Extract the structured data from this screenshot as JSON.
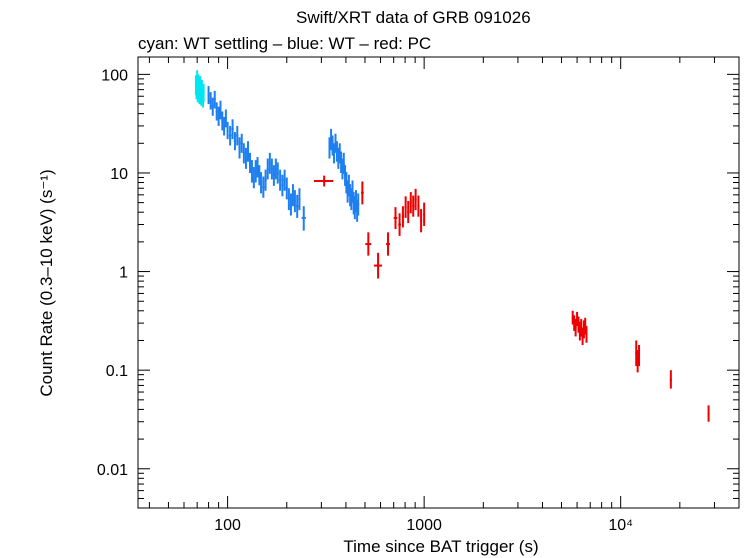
{
  "chart_data": {
    "type": "scatter",
    "title": "Swift/XRT data of GRB 091026",
    "subtitle": "cyan: WT settling – blue: WT – red: PC",
    "xlabel": "Time since BAT trigger (s)",
    "ylabel": "Count Rate (0.3–10 keV) (s⁻¹)",
    "xscale": "log",
    "yscale": "log",
    "xlim": [
      35,
      40000
    ],
    "ylim": [
      0.004,
      150
    ],
    "x_ticks": [
      {
        "value": 100,
        "label": "100"
      },
      {
        "value": 1000,
        "label": "1000"
      },
      {
        "value": 10000,
        "label": "10⁴"
      }
    ],
    "y_ticks": [
      {
        "value": 100,
        "label": "100"
      },
      {
        "value": 10,
        "label": "10"
      },
      {
        "value": 1,
        "label": "1"
      },
      {
        "value": 0.1,
        "label": "0.1"
      },
      {
        "value": 0.01,
        "label": "0.01"
      }
    ],
    "colors": {
      "wt_settling": "#00e5ee",
      "wt": "#1e7ff0",
      "pc": "#ee0000",
      "axes": "#000000"
    },
    "series": [
      {
        "name": "WT settling",
        "key": "wt_settling",
        "points": [
          {
            "x": 69,
            "y": 80,
            "xe": 0.5,
            "ylo": 62,
            "yhi": 98
          },
          {
            "x": 69.5,
            "y": 70,
            "xe": 0.5,
            "ylo": 56,
            "yhi": 86
          },
          {
            "x": 70,
            "y": 90,
            "xe": 0.5,
            "ylo": 72,
            "yhi": 110
          },
          {
            "x": 70.5,
            "y": 66,
            "xe": 0.5,
            "ylo": 52,
            "yhi": 80
          },
          {
            "x": 71,
            "y": 82,
            "xe": 0.5,
            "ylo": 66,
            "yhi": 100
          },
          {
            "x": 71.5,
            "y": 74,
            "xe": 0.5,
            "ylo": 58,
            "yhi": 92
          },
          {
            "x": 72,
            "y": 62,
            "xe": 0.5,
            "ylo": 50,
            "yhi": 76
          },
          {
            "x": 72.5,
            "y": 78,
            "xe": 0.5,
            "ylo": 62,
            "yhi": 96
          },
          {
            "x": 73,
            "y": 68,
            "xe": 0.5,
            "ylo": 54,
            "yhi": 84
          },
          {
            "x": 73.5,
            "y": 60,
            "xe": 0.5,
            "ylo": 48,
            "yhi": 74
          },
          {
            "x": 74,
            "y": 72,
            "xe": 0.5,
            "ylo": 58,
            "yhi": 88
          },
          {
            "x": 74.5,
            "y": 64,
            "xe": 0.5,
            "ylo": 50,
            "yhi": 78
          },
          {
            "x": 75,
            "y": 58,
            "xe": 0.5,
            "ylo": 46,
            "yhi": 72
          },
          {
            "x": 75.5,
            "y": 66,
            "xe": 0.5,
            "ylo": 52,
            "yhi": 80
          }
        ]
      },
      {
        "name": "WT",
        "key": "wt",
        "points": [
          {
            "x": 80,
            "y": 62,
            "xe": 1,
            "ylo": 50,
            "yhi": 76
          },
          {
            "x": 82,
            "y": 54,
            "xe": 1,
            "ylo": 44,
            "yhi": 66
          },
          {
            "x": 84,
            "y": 48,
            "xe": 1,
            "ylo": 38,
            "yhi": 58
          },
          {
            "x": 86,
            "y": 56,
            "xe": 1,
            "ylo": 45,
            "yhi": 68
          },
          {
            "x": 88,
            "y": 42,
            "xe": 1,
            "ylo": 34,
            "yhi": 52
          },
          {
            "x": 90,
            "y": 38,
            "xe": 1,
            "ylo": 30,
            "yhi": 47
          },
          {
            "x": 92,
            "y": 44,
            "xe": 1,
            "ylo": 35,
            "yhi": 54
          },
          {
            "x": 94,
            "y": 34,
            "xe": 1,
            "ylo": 27,
            "yhi": 42
          },
          {
            "x": 96,
            "y": 30,
            "xe": 1,
            "ylo": 24,
            "yhi": 37
          },
          {
            "x": 98,
            "y": 36,
            "xe": 1,
            "ylo": 29,
            "yhi": 44
          },
          {
            "x": 100,
            "y": 27,
            "xe": 1,
            "ylo": 22,
            "yhi": 33
          },
          {
            "x": 103,
            "y": 24,
            "xe": 1.5,
            "ylo": 19,
            "yhi": 30
          },
          {
            "x": 106,
            "y": 28,
            "xe": 1.5,
            "ylo": 22,
            "yhi": 35
          },
          {
            "x": 109,
            "y": 21,
            "xe": 1.5,
            "ylo": 17,
            "yhi": 26
          },
          {
            "x": 112,
            "y": 24,
            "xe": 1.5,
            "ylo": 19,
            "yhi": 30
          },
          {
            "x": 115,
            "y": 18,
            "xe": 1.5,
            "ylo": 14,
            "yhi": 23
          },
          {
            "x": 118,
            "y": 20,
            "xe": 1.5,
            "ylo": 16,
            "yhi": 25
          },
          {
            "x": 121,
            "y": 16,
            "xe": 1.5,
            "ylo": 12.5,
            "yhi": 20
          },
          {
            "x": 124,
            "y": 14,
            "xe": 1.5,
            "ylo": 11,
            "yhi": 18
          },
          {
            "x": 127,
            "y": 16.5,
            "xe": 1.5,
            "ylo": 13,
            "yhi": 21
          },
          {
            "x": 130,
            "y": 13,
            "xe": 1.5,
            "ylo": 10,
            "yhi": 16
          },
          {
            "x": 133,
            "y": 10.5,
            "xe": 1.5,
            "ylo": 8,
            "yhi": 13.5
          },
          {
            "x": 136,
            "y": 9,
            "xe": 1.5,
            "ylo": 7,
            "yhi": 11.5
          },
          {
            "x": 139,
            "y": 10.5,
            "xe": 1.5,
            "ylo": 8,
            "yhi": 13.5
          },
          {
            "x": 142,
            "y": 11.5,
            "xe": 1.5,
            "ylo": 9,
            "yhi": 14.5
          },
          {
            "x": 145,
            "y": 9.5,
            "xe": 1.5,
            "ylo": 7.5,
            "yhi": 12
          },
          {
            "x": 148,
            "y": 8,
            "xe": 1.5,
            "ylo": 6.2,
            "yhi": 10.2
          },
          {
            "x": 152,
            "y": 7.2,
            "xe": 2,
            "ylo": 5.6,
            "yhi": 9.2
          },
          {
            "x": 156,
            "y": 8.5,
            "xe": 2,
            "ylo": 6.6,
            "yhi": 10.8
          },
          {
            "x": 160,
            "y": 11,
            "xe": 2,
            "ylo": 8.6,
            "yhi": 14
          },
          {
            "x": 164,
            "y": 12.5,
            "xe": 2,
            "ylo": 9.8,
            "yhi": 16
          },
          {
            "x": 168,
            "y": 11,
            "xe": 2,
            "ylo": 8.6,
            "yhi": 14
          },
          {
            "x": 172,
            "y": 9.5,
            "xe": 2,
            "ylo": 7.4,
            "yhi": 12
          },
          {
            "x": 176,
            "y": 11,
            "xe": 2,
            "ylo": 8.6,
            "yhi": 14
          },
          {
            "x": 180,
            "y": 10,
            "xe": 2,
            "ylo": 7.8,
            "yhi": 12.8
          },
          {
            "x": 185,
            "y": 8.5,
            "xe": 2.5,
            "ylo": 6.6,
            "yhi": 10.8
          },
          {
            "x": 190,
            "y": 7.5,
            "xe": 2.5,
            "ylo": 5.8,
            "yhi": 9.6
          },
          {
            "x": 195,
            "y": 8.5,
            "xe": 2.5,
            "ylo": 6.6,
            "yhi": 10.8
          },
          {
            "x": 200,
            "y": 7,
            "xe": 2.5,
            "ylo": 5.4,
            "yhi": 9
          },
          {
            "x": 205,
            "y": 5.5,
            "xe": 2.5,
            "ylo": 4.2,
            "yhi": 7
          },
          {
            "x": 210,
            "y": 4.8,
            "xe": 2.5,
            "ylo": 3.7,
            "yhi": 6.2
          },
          {
            "x": 215,
            "y": 6,
            "xe": 2.5,
            "ylo": 4.6,
            "yhi": 7.7
          },
          {
            "x": 220,
            "y": 5.2,
            "xe": 2.5,
            "ylo": 4,
            "yhi": 6.7
          },
          {
            "x": 226,
            "y": 4.6,
            "xe": 3,
            "ylo": 3.5,
            "yhi": 6
          },
          {
            "x": 232,
            "y": 5.4,
            "xe": 3,
            "ylo": 4.2,
            "yhi": 7
          },
          {
            "x": 244,
            "y": 3.5,
            "xe": 6,
            "ylo": 2.6,
            "yhi": 4.6
          },
          {
            "x": 330,
            "y": 18,
            "xe": 3,
            "ylo": 14,
            "yhi": 23
          },
          {
            "x": 336,
            "y": 22,
            "xe": 3,
            "ylo": 17,
            "yhi": 28
          },
          {
            "x": 342,
            "y": 19,
            "xe": 3,
            "ylo": 15,
            "yhi": 24
          },
          {
            "x": 348,
            "y": 16,
            "xe": 3,
            "ylo": 12.5,
            "yhi": 20
          },
          {
            "x": 354,
            "y": 20,
            "xe": 3,
            "ylo": 16,
            "yhi": 25
          },
          {
            "x": 360,
            "y": 17,
            "xe": 3,
            "ylo": 13,
            "yhi": 21
          },
          {
            "x": 366,
            "y": 14,
            "xe": 3,
            "ylo": 11,
            "yhi": 18
          },
          {
            "x": 372,
            "y": 16,
            "xe": 3,
            "ylo": 12.5,
            "yhi": 20
          },
          {
            "x": 378,
            "y": 13,
            "xe": 3,
            "ylo": 10,
            "yhi": 16.5
          },
          {
            "x": 384,
            "y": 11,
            "xe": 3,
            "ylo": 8.6,
            "yhi": 14
          },
          {
            "x": 390,
            "y": 12.5,
            "xe": 3,
            "ylo": 9.8,
            "yhi": 16
          },
          {
            "x": 396,
            "y": 9.5,
            "xe": 3,
            "ylo": 7.4,
            "yhi": 12
          },
          {
            "x": 402,
            "y": 8,
            "xe": 3,
            "ylo": 6.2,
            "yhi": 10.2
          },
          {
            "x": 408,
            "y": 6.5,
            "xe": 3,
            "ylo": 5,
            "yhi": 8.4
          },
          {
            "x": 414,
            "y": 7.5,
            "xe": 3,
            "ylo": 5.8,
            "yhi": 9.6
          },
          {
            "x": 420,
            "y": 6,
            "xe": 3,
            "ylo": 4.6,
            "yhi": 7.7
          },
          {
            "x": 426,
            "y": 5.5,
            "xe": 3,
            "ylo": 4.2,
            "yhi": 7
          },
          {
            "x": 432,
            "y": 6.5,
            "xe": 3,
            "ylo": 5,
            "yhi": 8.4
          },
          {
            "x": 438,
            "y": 5,
            "xe": 3,
            "ylo": 3.8,
            "yhi": 6.4
          },
          {
            "x": 444,
            "y": 4.5,
            "xe": 3,
            "ylo": 3.4,
            "yhi": 5.8
          },
          {
            "x": 450,
            "y": 5.2,
            "xe": 3,
            "ylo": 4,
            "yhi": 6.7
          },
          {
            "x": 456,
            "y": 4.2,
            "xe": 3,
            "ylo": 3.2,
            "yhi": 5.4
          },
          {
            "x": 462,
            "y": 4.8,
            "xe": 3,
            "ylo": 3.7,
            "yhi": 6.2
          }
        ]
      },
      {
        "name": "PC",
        "key": "pc",
        "points": [
          {
            "x": 310,
            "y": 8.3,
            "xe": 35,
            "ylo": 7.3,
            "yhi": 9.4
          },
          {
            "x": 485,
            "y": 6.3,
            "xe": 8,
            "ylo": 4.8,
            "yhi": 8.2
          },
          {
            "x": 520,
            "y": 1.9,
            "xe": 18,
            "ylo": 1.45,
            "yhi": 2.5
          },
          {
            "x": 583,
            "y": 1.15,
            "xe": 28,
            "ylo": 0.85,
            "yhi": 1.55
          },
          {
            "x": 655,
            "y": 1.9,
            "xe": 15,
            "ylo": 1.45,
            "yhi": 2.5
          },
          {
            "x": 715,
            "y": 3.5,
            "xe": 15,
            "ylo": 2.7,
            "yhi": 4.5
          },
          {
            "x": 750,
            "y": 3.0,
            "xe": 12,
            "ylo": 2.3,
            "yhi": 3.9
          },
          {
            "x": 780,
            "y": 3.6,
            "xe": 10,
            "ylo": 2.8,
            "yhi": 4.6
          },
          {
            "x": 805,
            "y": 4.5,
            "xe": 8,
            "ylo": 3.5,
            "yhi": 5.8
          },
          {
            "x": 830,
            "y": 4.0,
            "xe": 8,
            "ylo": 3.1,
            "yhi": 5.2
          },
          {
            "x": 855,
            "y": 5.0,
            "xe": 8,
            "ylo": 3.9,
            "yhi": 6.4
          },
          {
            "x": 880,
            "y": 4.6,
            "xe": 8,
            "ylo": 3.6,
            "yhi": 5.9
          },
          {
            "x": 905,
            "y": 5.4,
            "xe": 8,
            "ylo": 4.2,
            "yhi": 6.9
          },
          {
            "x": 935,
            "y": 4.6,
            "xe": 10,
            "ylo": 3.6,
            "yhi": 5.9
          },
          {
            "x": 965,
            "y": 3.3,
            "xe": 10,
            "ylo": 2.5,
            "yhi": 4.3
          },
          {
            "x": 1000,
            "y": 3.8,
            "xe": 12,
            "ylo": 2.9,
            "yhi": 5.0
          },
          {
            "x": 5700,
            "y": 0.34,
            "xe": 50,
            "ylo": 0.29,
            "yhi": 0.4
          },
          {
            "x": 5800,
            "y": 0.3,
            "xe": 50,
            "ylo": 0.25,
            "yhi": 0.36
          },
          {
            "x": 5900,
            "y": 0.27,
            "xe": 50,
            "ylo": 0.22,
            "yhi": 0.33
          },
          {
            "x": 6000,
            "y": 0.33,
            "xe": 50,
            "ylo": 0.28,
            "yhi": 0.39
          },
          {
            "x": 6100,
            "y": 0.29,
            "xe": 50,
            "ylo": 0.24,
            "yhi": 0.35
          },
          {
            "x": 6200,
            "y": 0.25,
            "xe": 50,
            "ylo": 0.2,
            "yhi": 0.31
          },
          {
            "x": 6300,
            "y": 0.27,
            "xe": 50,
            "ylo": 0.22,
            "yhi": 0.33
          },
          {
            "x": 6400,
            "y": 0.22,
            "xe": 50,
            "ylo": 0.18,
            "yhi": 0.27
          },
          {
            "x": 6500,
            "y": 0.26,
            "xe": 50,
            "ylo": 0.21,
            "yhi": 0.32
          },
          {
            "x": 6600,
            "y": 0.28,
            "xe": 50,
            "ylo": 0.23,
            "yhi": 0.34
          },
          {
            "x": 6700,
            "y": 0.23,
            "xe": 50,
            "ylo": 0.19,
            "yhi": 0.28
          },
          {
            "x": 12000,
            "y": 0.15,
            "xe": 100,
            "ylo": 0.11,
            "yhi": 0.2
          },
          {
            "x": 12200,
            "y": 0.12,
            "xe": 100,
            "ylo": 0.095,
            "yhi": 0.16
          },
          {
            "x": 12400,
            "y": 0.14,
            "xe": 100,
            "ylo": 0.11,
            "yhi": 0.18
          },
          {
            "x": 18000,
            "y": 0.08,
            "xe": 200,
            "ylo": 0.065,
            "yhi": 0.1
          },
          {
            "x": 28000,
            "y": 0.036,
            "xe": 300,
            "ylo": 0.03,
            "yhi": 0.044
          }
        ]
      }
    ]
  }
}
